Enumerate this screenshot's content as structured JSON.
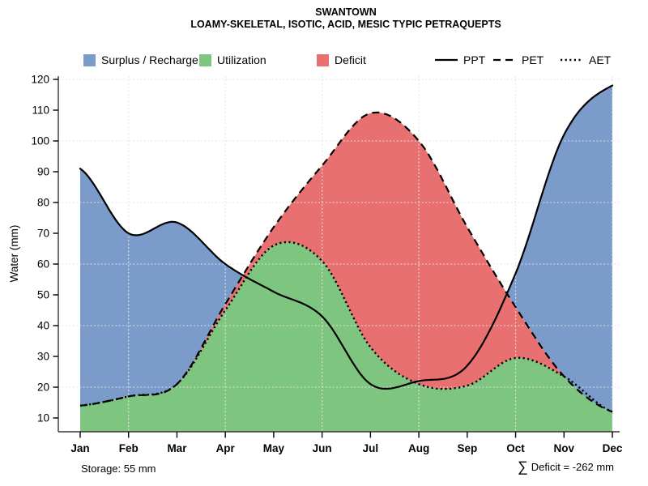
{
  "title": {
    "line1": "SWANTOWN",
    "line2": "LOAMY-SKELETAL, ISOTIC, ACID, MESIC TYPIC PETRAQUEPTS"
  },
  "legend": {
    "fills": [
      {
        "label": "Surplus / Recharge",
        "color": "#7B9CCA"
      },
      {
        "label": "Utilization",
        "color": "#7EC57F"
      },
      {
        "label": "Deficit",
        "color": "#E97070"
      }
    ],
    "lines": [
      {
        "label": "PPT",
        "style": "solid"
      },
      {
        "label": "PET",
        "style": "dashed"
      },
      {
        "label": "AET",
        "style": "dotted"
      }
    ]
  },
  "annotations": {
    "storage": "Storage: 55 mm",
    "sigma": "∑",
    "deficit_sum": "Deficit = -262 mm"
  },
  "chart_data": {
    "type": "area",
    "title": "SWANTOWN",
    "subtitle": "LOAMY-SKELETAL, ISOTIC, ACID, MESIC TYPIC PETRAQUEPTS",
    "x": [
      "Jan",
      "Feb",
      "Mar",
      "Apr",
      "May",
      "Jun",
      "Jul",
      "Aug",
      "Sep",
      "Oct",
      "Nov",
      "Dec"
    ],
    "xlabel": "",
    "ylabel": "Water (mm)",
    "ylim": [
      10,
      120
    ],
    "y_ticks": [
      10,
      20,
      30,
      40,
      50,
      60,
      70,
      80,
      90,
      100,
      110,
      120
    ],
    "series": [
      {
        "name": "PPT",
        "line": "solid",
        "values": [
          91,
          70,
          73.5,
          60,
          51,
          43,
          21,
          22,
          27,
          57,
          102,
          118
        ]
      },
      {
        "name": "PET",
        "line": "dashed",
        "values": [
          14,
          17,
          21,
          47,
          72,
          92,
          109,
          100,
          72,
          46,
          23.5,
          12
        ]
      },
      {
        "name": "AET",
        "line": "dotted",
        "values": [
          14,
          17,
          21,
          45,
          66,
          61,
          33,
          21,
          20.5,
          29.5,
          23.5,
          12
        ]
      }
    ],
    "areas": [
      {
        "name": "Surplus / Recharge",
        "color": "#7B9CCA",
        "rule": "between PPT and PET where PPT > PET"
      },
      {
        "name": "Utilization",
        "color": "#7EC57F",
        "rule": "under AET curve"
      },
      {
        "name": "Deficit",
        "color": "#E97070",
        "rule": "between PET and AET where PET > AET"
      }
    ],
    "grid": {
      "on": true,
      "horizontal_at": [
        20,
        40,
        60,
        80,
        100,
        120
      ],
      "vertical_at_months": [
        "Feb",
        "Apr",
        "Jun",
        "Aug",
        "Oct",
        "Dec"
      ]
    },
    "legend_position": "top",
    "storage_mm": 55,
    "deficit_sum_mm": -262
  },
  "colors": {
    "surplus": "#7B9CCA",
    "utilization": "#7EC57F",
    "deficit": "#E97070",
    "gridline": "#D6D6D6",
    "gridline_over_fill": "#F2F2F2",
    "axis": "#333333",
    "line": "#000000"
  }
}
